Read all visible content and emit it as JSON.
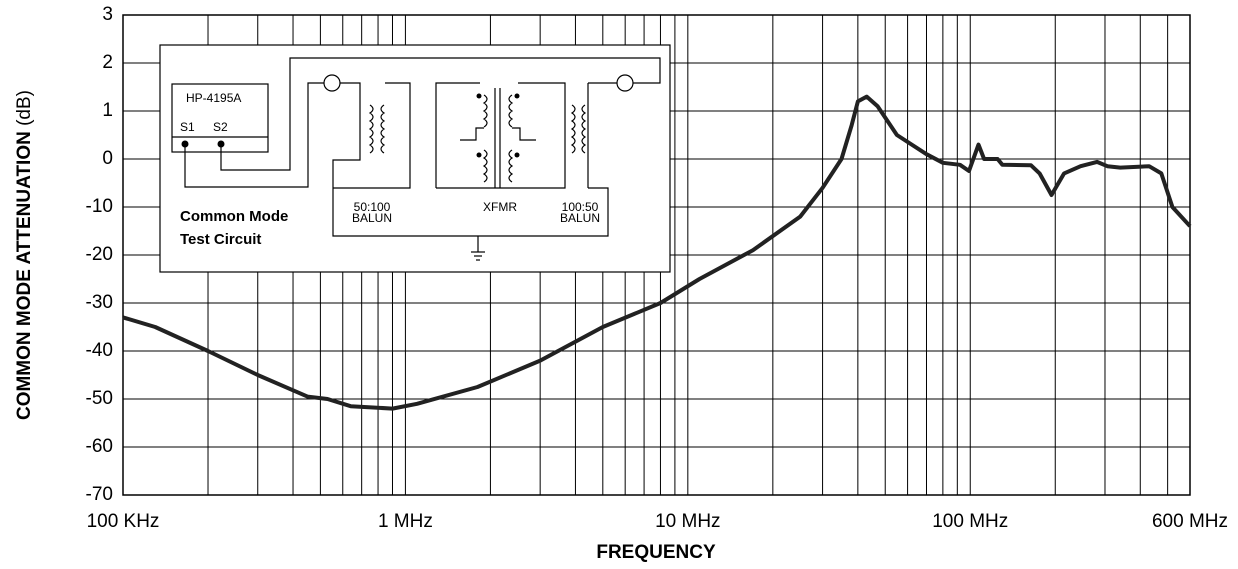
{
  "chart_data": {
    "type": "line",
    "ylabel": "COMMON MODE ATTENUATION",
    "ylabel_unit": "(dB)",
    "xlabel": "FREQUENCY",
    "xscale": "log",
    "grid": true,
    "xlim": [
      100000,
      600000000
    ],
    "xticks": [
      {
        "value": 100000,
        "label": "100 KHz"
      },
      {
        "value": 1000000,
        "label": "1 MHz"
      },
      {
        "value": 10000000,
        "label": "10 MHz"
      },
      {
        "value": 100000000,
        "label": "100 MHz"
      },
      {
        "value": 600000000,
        "label": "600 MHz"
      }
    ],
    "xminorticks": [
      200000,
      300000,
      400000,
      500000,
      600000,
      700000,
      800000,
      900000,
      2000000,
      3000000,
      4000000,
      5000000,
      6000000,
      7000000,
      8000000,
      9000000,
      20000000,
      30000000,
      40000000,
      50000000,
      60000000,
      70000000,
      80000000,
      90000000,
      200000000,
      300000000,
      400000000,
      500000000
    ],
    "ylim": [
      -70,
      3
    ],
    "yticks": [
      3,
      2,
      1,
      0,
      -10,
      -20,
      -30,
      -40,
      -50,
      -60,
      -70
    ],
    "x": [
      100000,
      130000,
      200000,
      300000,
      450000,
      530000,
      640000,
      900000,
      1100000,
      1800000,
      3000000,
      5000000,
      8000000,
      11000000,
      17000000,
      25000000,
      30000000,
      35000000,
      38000000,
      40000000,
      43000000,
      47000000,
      55000000,
      70000000,
      80000000,
      92000000,
      99000000,
      107000000,
      112000000,
      125000000,
      130000000,
      164000000,
      176000000,
      194000000,
      215000000,
      246000000,
      281000000,
      306000000,
      340000000,
      430000000,
      475000000,
      520000000,
      600000000
    ],
    "series": [
      {
        "name": "attenuation",
        "color": "#222222",
        "values": [
          -33,
          -35,
          -40,
          -45,
          -49.5,
          -50,
          -51.5,
          -52,
          -51,
          -47.5,
          -42,
          -35,
          -30,
          -25,
          -19,
          -12,
          -6,
          0,
          0.7,
          1.2,
          1.3,
          1.1,
          0.5,
          0.1,
          -0.8,
          -1.2,
          -2.5,
          0.3,
          0,
          0,
          -1.2,
          -1.3,
          -3,
          -7.5,
          -3,
          -1.5,
          -0.6,
          -1.5,
          -1.8,
          -1.5,
          -3,
          -10,
          -14
        ]
      }
    ]
  },
  "inset": {
    "instrument": "HP-4195A",
    "port1": "S1",
    "port2": "S2",
    "title_line1": "Common Mode",
    "title_line2": "Test Circuit",
    "balun1_ratio": "50:100",
    "balun1_label": "BALUN",
    "xfmr": "XFMR",
    "balun2_ratio": "100:50",
    "balun2_label": "BALUN"
  }
}
